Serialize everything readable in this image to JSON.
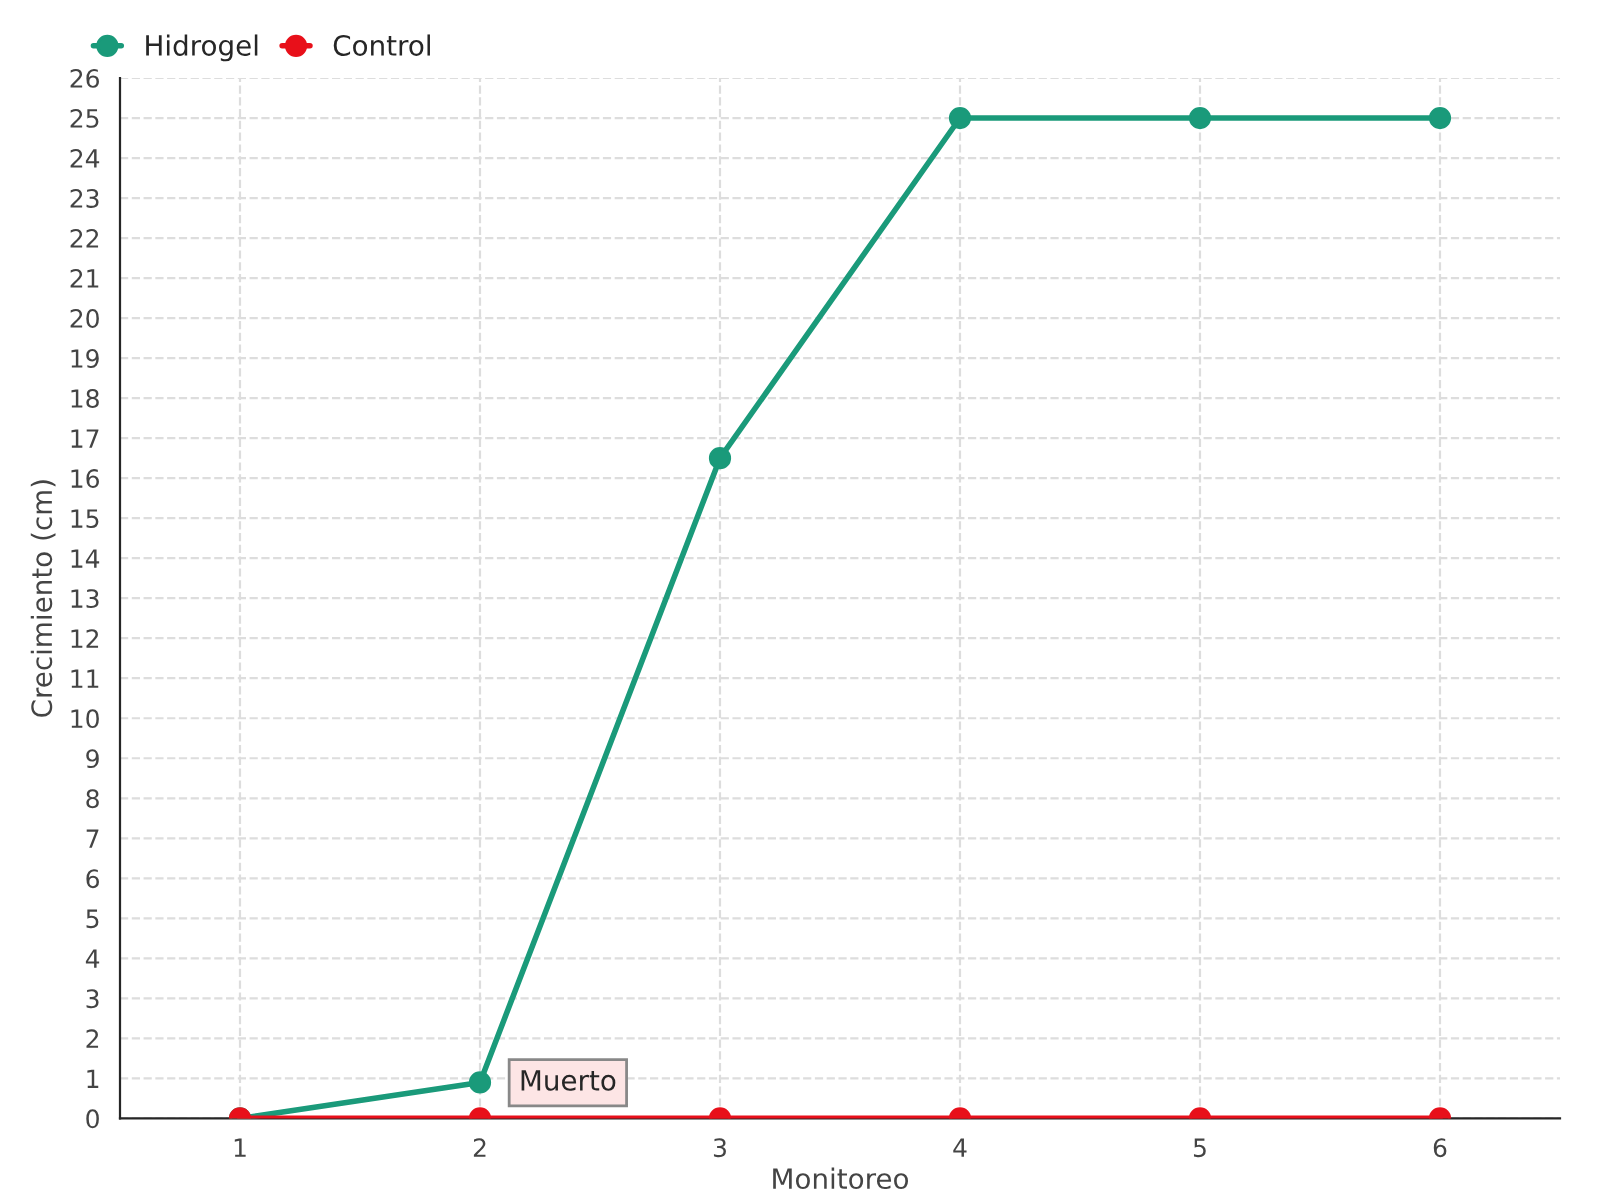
{
  "chart_data": {
    "type": "line",
    "xlabel": "Monitoreo",
    "ylabel": "Crecimiento (cm)",
    "categories": [
      "1",
      "2",
      "3",
      "4",
      "5",
      "6"
    ],
    "series": [
      {
        "name": "Hidrogel",
        "color": "#1a9a7a",
        "values": [
          0,
          0.9,
          16.5,
          25,
          25,
          25
        ]
      },
      {
        "name": "Control",
        "color": "#e8101a",
        "values": [
          0,
          0,
          0,
          0,
          0,
          0
        ]
      }
    ],
    "ylim": [
      0,
      26
    ],
    "yticks": [
      0,
      1,
      2,
      3,
      4,
      5,
      6,
      7,
      8,
      9,
      10,
      11,
      12,
      13,
      14,
      15,
      16,
      17,
      18,
      19,
      20,
      21,
      22,
      23,
      24,
      25,
      26
    ],
    "annotations": [
      {
        "text": "Muerto",
        "x": "2",
        "y": 0
      }
    ],
    "grid": true,
    "legend": "top left",
    "marker": "circle",
    "line_style": "solid"
  }
}
